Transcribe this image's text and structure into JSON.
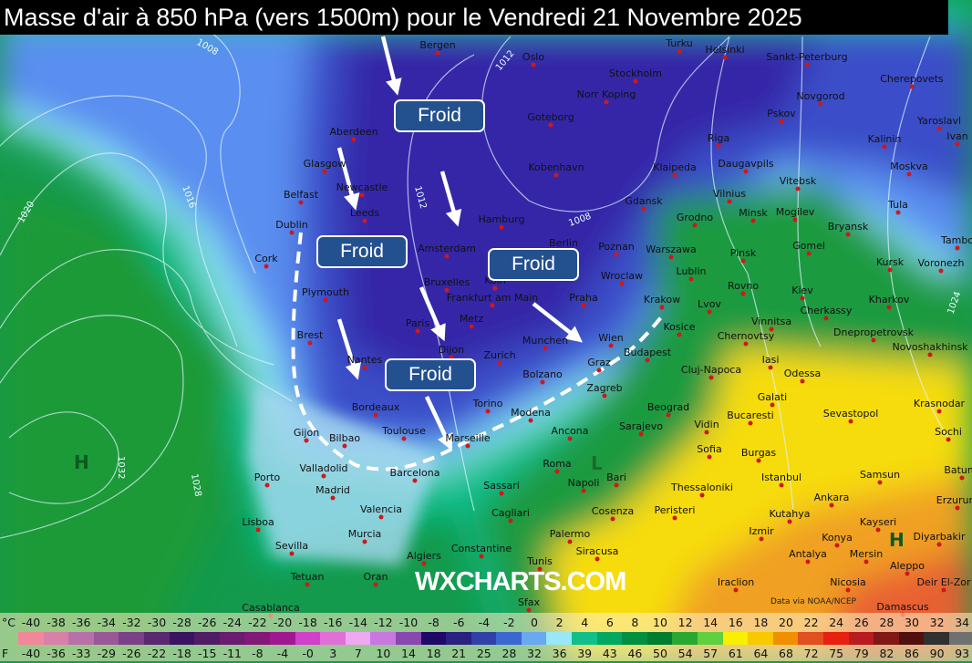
{
  "title": "Masse d'air à 850 hPa (vers 1500m) pour le Vendredi 21 Novembre 2025",
  "annotations": {
    "label": "Froid",
    "count": 4
  },
  "pressure_centers": [
    "H",
    "H",
    "L"
  ],
  "isobar_labels": [
    "1008",
    "1012",
    "1016",
    "1020",
    "1024",
    "1028",
    "1032",
    "1012",
    "1008"
  ],
  "cities": [
    "Bergen",
    "Oslo",
    "Turku",
    "Helsinki",
    "Sankt-Peterburg",
    "Stockholm",
    "Norr Koping",
    "Cherepovets",
    "Novgorod",
    "Goteborg",
    "Aberdeen",
    "Pskov",
    "Yaroslavl",
    "Ivan",
    "Riga",
    "Kalinin",
    "Glasgow",
    "Kobenhavn",
    "Klaipeda",
    "Daugavpils",
    "Moskva",
    "Vitebsk",
    "Newcastle",
    "Belfast",
    "Leeds",
    "Gdansk",
    "Hamburg",
    "Vilnius",
    "Tula",
    "Minsk",
    "Mogilev",
    "Dublin",
    "Grodno",
    "Bryansk",
    "Amsterdam",
    "Berlin",
    "Poznan",
    "Warszawa",
    "Gomel",
    "Tambo",
    "Pinsk",
    "Cork",
    "Bruxelles",
    "Koln",
    "Wroclaw",
    "Lublin",
    "Kursk",
    "Voronezh",
    "Plymouth",
    "Frankfurt am Main",
    "Praha",
    "Rovno",
    "Kiev",
    "Krakow",
    "Kharkov",
    "Paris",
    "Metz",
    "Lvov",
    "Vinnitsa",
    "Cherkassy",
    "Brest",
    "Dnepropetrovsk",
    "Chernovtsy",
    "Munchen",
    "Wien",
    "Kosice",
    "Novoshakhinsk",
    "Nantes",
    "Dijon",
    "Zurich",
    "Budapest",
    "Graz",
    "Iasi",
    "Cluj-Napoca",
    "Bolzano",
    "Odessa",
    "Zagreb",
    "Galati",
    "Torino",
    "Modena",
    "Bordeaux",
    "Beograd",
    "Krasnodar",
    "Sevastopol",
    "Bucaresti",
    "Toulouse",
    "Marseille",
    "Ancona",
    "Sarajevo",
    "Vidin",
    "Sochi",
    "Gijon",
    "Bilbao",
    "Sofia",
    "Burgas",
    "Barcelona",
    "Batumi",
    "Valladolid",
    "Porto",
    "Roma",
    "Bari",
    "Istanbul",
    "Samsun",
    "Napoli",
    "Sassari",
    "Madrid",
    "Thessaloniki",
    "Ankara",
    "Erzurum",
    "Valencia",
    "Cagliari",
    "Peristeri",
    "Kutahya",
    "Cosenza",
    "Kayseri",
    "Lisboa",
    "Diyarbakir",
    "Murcia",
    "Palermo",
    "Izmir",
    "Konya",
    "Sevilla",
    "Siracusa",
    "Antalya",
    "Mersin",
    "Algiers",
    "Constantine",
    "Tunis",
    "Aleppo",
    "Tetuan",
    "Oran",
    "Iraclion",
    "Nicosia",
    "Deir El-Zor",
    "Sfax",
    "Casablanca",
    "Damascus"
  ],
  "watermark": "WXCHARTS.COM",
  "credit": "Data via NOAA/NCEP",
  "legend": {
    "celsius_unit": "°C",
    "fahrenheit_unit": "F",
    "celsius": [
      "-40",
      "-38",
      "-36",
      "-34",
      "-32",
      "-30",
      "-28",
      "-26",
      "-24",
      "-22",
      "-20",
      "-18",
      "-16",
      "-14",
      "-12",
      "-10",
      "-8",
      "-6",
      "-4",
      "-2",
      "0",
      "2",
      "4",
      "6",
      "8",
      "10",
      "12",
      "14",
      "16",
      "18",
      "20",
      "22",
      "24",
      "26",
      "28",
      "30",
      "32",
      "34"
    ],
    "fahrenheit": [
      "-40",
      "-36",
      "-33",
      "-29",
      "-26",
      "-22",
      "-18",
      "-15",
      "-11",
      "-8",
      "-4",
      "-0",
      "3",
      "7",
      "10",
      "14",
      "18",
      "21",
      "25",
      "28",
      "32",
      "36",
      "39",
      "43",
      "46",
      "50",
      "54",
      "57",
      "61",
      "64",
      "68",
      "72",
      "75",
      "79",
      "82",
      "86",
      "90",
      "93"
    ],
    "colors": [
      "#f0889a",
      "#d880a8",
      "#b870a8",
      "#9a5898",
      "#7a4088",
      "#5a2870",
      "#3a1460",
      "#501c68",
      "#6a1c70",
      "#821878",
      "#a01890",
      "#d040c8",
      "#e070d8",
      "#f0a8f0",
      "#c878e0",
      "#8848b0",
      "#200868",
      "#2a2080",
      "#3040a8",
      "#3a68d0",
      "#6aa8f0",
      "#98e8f8",
      "#10c088",
      "#00a860",
      "#009040",
      "#007e30",
      "#28a830",
      "#60d040",
      "#f8f000",
      "#f8c800",
      "#f09000",
      "#e05020",
      "#e82010",
      "#b81c20",
      "#801818",
      "#501010",
      "#303030",
      "#707070"
    ]
  }
}
